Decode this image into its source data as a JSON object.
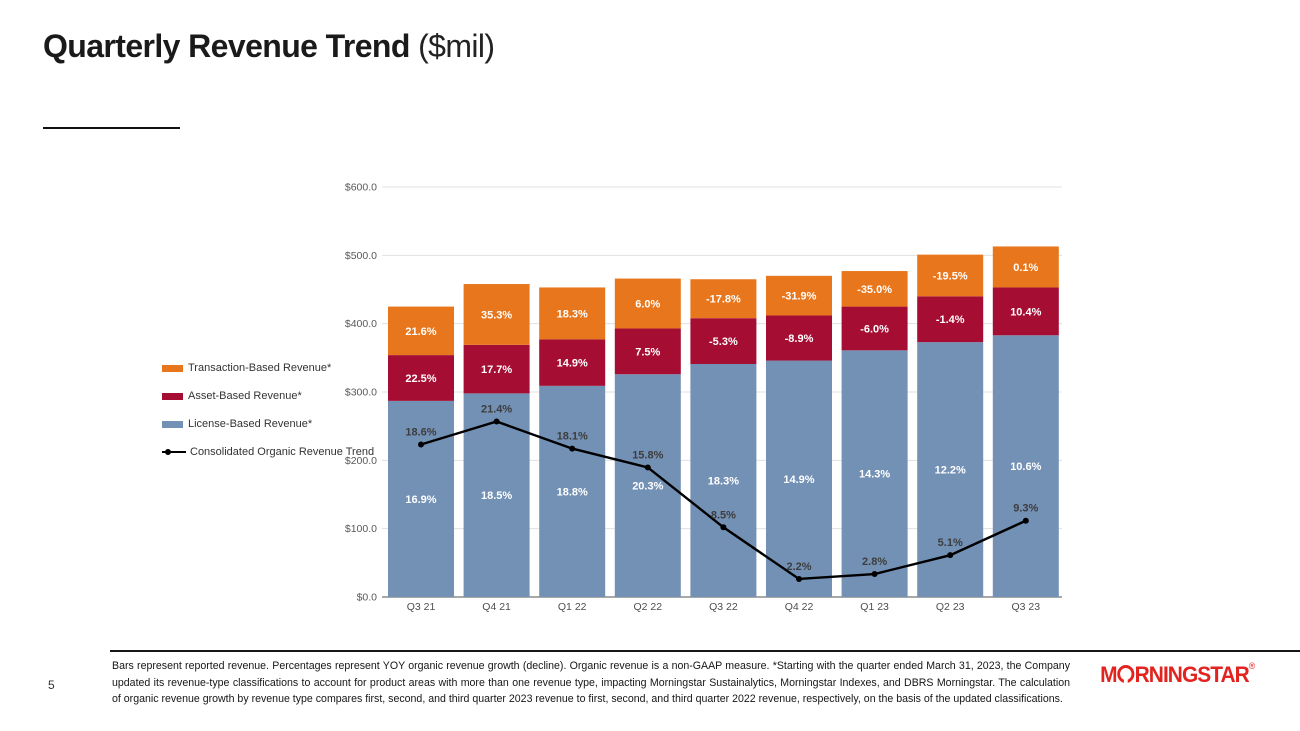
{
  "slide": {
    "title": "Quarterly Revenue Trend",
    "title_suffix": " ($mil)",
    "page_number": "5",
    "footnote": "Bars represent reported revenue. Percentages represent YOY organic revenue growth (decline). Organic revenue is a non-GAAP measure. *Starting with the quarter ended March 31, 2023, the Company updated its revenue-type classifications to account for product areas with more than one revenue type, impacting Morningstar Sustainalytics, Morningstar Indexes, and DBRS Morningstar. The calculation of organic revenue growth by revenue type compares first, second, and third quarter 2023 revenue to first, second, and third quarter 2022 revenue, respectively, on the basis of the updated classifications.",
    "logo": {
      "pre": "M",
      "post": "RNINGSTAR",
      "reg": "®",
      "color": "#e2231f"
    }
  },
  "legend": {
    "items": [
      {
        "label": "Transaction-Based Revenue*",
        "swatch": "#E8761C",
        "type": "bar"
      },
      {
        "label": "Asset-Based Revenue*",
        "swatch": "#A50D33",
        "type": "bar"
      },
      {
        "label": "License-Based Revenue*",
        "swatch": "#7390B5",
        "type": "bar"
      },
      {
        "label": "Consolidated Organic Revenue Trend",
        "swatch": "#000000",
        "type": "line"
      }
    ]
  },
  "chart_data": {
    "type": "bar",
    "stacked": true,
    "title": "Quarterly Revenue Trend ($mil)",
    "categories": [
      "Q3 21",
      "Q4 21",
      "Q1 22",
      "Q2 22",
      "Q3 22",
      "Q4 22",
      "Q1 23",
      "Q2 23",
      "Q3 23"
    ],
    "series": [
      {
        "name": "License-Based Revenue*",
        "role": "bar-bottom",
        "color": "#7390B5",
        "values_est_mil": [
          287,
          298,
          309,
          326,
          341,
          346,
          361,
          373,
          383
        ],
        "yoy_growth_labels": [
          "16.9%",
          "18.5%",
          "18.8%",
          "20.3%",
          "18.3%",
          "14.9%",
          "14.3%",
          "12.2%",
          "10.6%"
        ]
      },
      {
        "name": "Asset-Based Revenue*",
        "role": "bar-middle",
        "color": "#A50D33",
        "values_est_mil": [
          67,
          71,
          68,
          67,
          67,
          66,
          64,
          67,
          70
        ],
        "yoy_growth_labels": [
          "22.5%",
          "17.7%",
          "14.9%",
          "7.5%",
          "-5.3%",
          "-8.9%",
          "-6.0%",
          "-1.4%",
          "10.4%"
        ]
      },
      {
        "name": "Transaction-Based Revenue*",
        "role": "bar-top",
        "color": "#E8761C",
        "values_est_mil": [
          71,
          89,
          76,
          73,
          57,
          58,
          52,
          61,
          60
        ],
        "yoy_growth_labels": [
          "21.6%",
          "35.3%",
          "18.3%",
          "6.0%",
          "-17.8%",
          "-31.9%",
          "-35.0%",
          "-19.5%",
          "0.1%"
        ]
      },
      {
        "name": "Consolidated Organic Revenue Trend",
        "role": "line",
        "color": "#000000",
        "values_pct": [
          18.6,
          21.4,
          18.1,
          15.8,
          8.5,
          2.2,
          2.8,
          5.1,
          9.3
        ],
        "labels": [
          "18.6%",
          "21.4%",
          "18.1%",
          "15.8%",
          "8.5%",
          "2.2%",
          "2.8%",
          "5.1%",
          "9.3%"
        ]
      }
    ],
    "y_axis": {
      "min": 0,
      "max": 600,
      "tick_step": 100,
      "tick_labels": [
        "$0.0",
        "$100.0",
        "$200.0",
        "$300.0",
        "$400.0",
        "$500.0",
        "$600.0"
      ]
    },
    "legend_position": "left",
    "grid": true,
    "bar_totals_est_mil": [
      425,
      458,
      453,
      466,
      465,
      470,
      477,
      501,
      513
    ]
  }
}
